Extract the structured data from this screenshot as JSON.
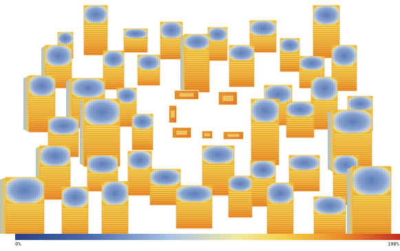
{
  "colorbar": {
    "min_label": "0%",
    "max_label": "100%",
    "colors": [
      "#283f86",
      "#4b6eb0",
      "#a9c3e6",
      "#f1ea9e",
      "#f4cf46",
      "#ee8a26",
      "#c42f22"
    ]
  }
}
